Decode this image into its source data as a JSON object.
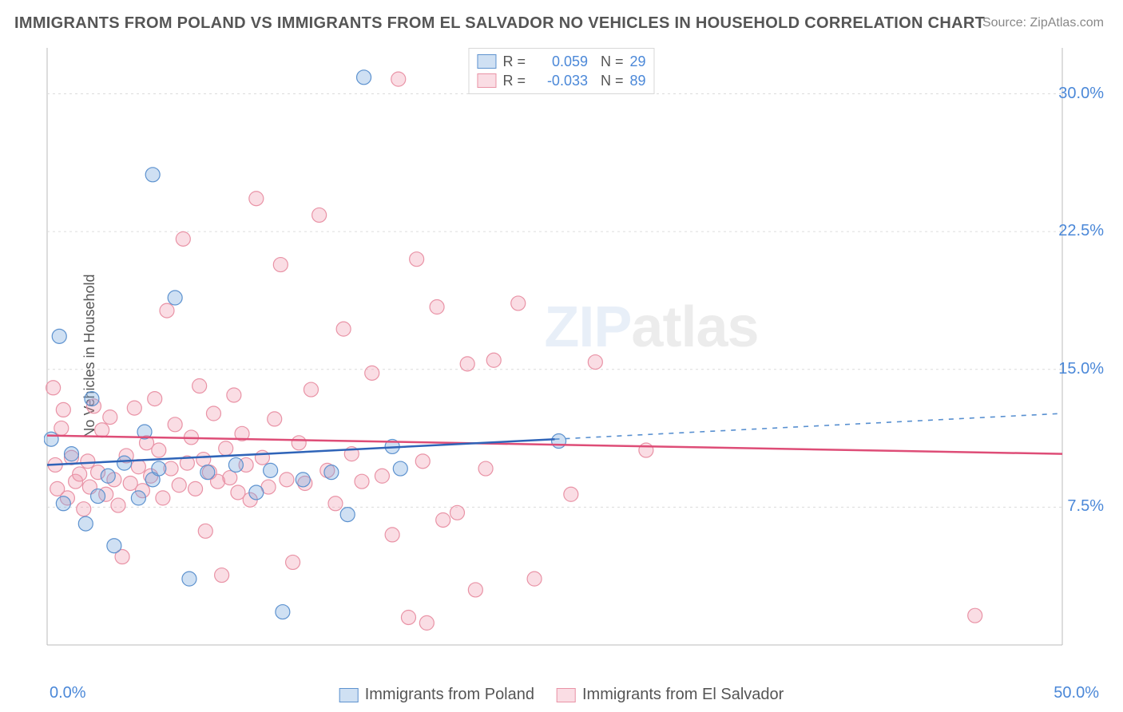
{
  "title": "IMMIGRANTS FROM POLAND VS IMMIGRANTS FROM EL SALVADOR NO VEHICLES IN HOUSEHOLD CORRELATION CHART",
  "source": "Source: ZipAtlas.com",
  "ylabel": "No Vehicles in Household",
  "watermark": {
    "zip": "ZIP",
    "atlas": "atlas"
  },
  "chart": {
    "type": "scatter-correlation",
    "xlim": [
      0,
      50
    ],
    "ylim": [
      0,
      32.5
    ],
    "x_ticks": [
      {
        "v": 0,
        "label": "0.0%"
      },
      {
        "v": 50,
        "label": "50.0%"
      }
    ],
    "y_ticks": [
      {
        "v": 7.5,
        "label": "7.5%"
      },
      {
        "v": 15.0,
        "label": "15.0%"
      },
      {
        "v": 22.5,
        "label": "22.5%"
      },
      {
        "v": 30.0,
        "label": "30.0%"
      }
    ],
    "grid_color": "#dcdcdc",
    "axis_color": "#bbbbbb",
    "background_color": "#ffffff",
    "tick_label_color": "#4b88d8",
    "label_fontsize": 18,
    "tick_fontsize": 20,
    "series": [
      {
        "name": "Immigrants from Poland",
        "color_fill": "rgba(117,165,222,0.35)",
        "color_stroke": "#5d92cf",
        "marker_radius": 9,
        "R": "0.059",
        "N": "29",
        "trend": {
          "x1": 0,
          "y1": 9.8,
          "x2": 25,
          "y2": 11.2,
          "x_extrap": 50,
          "y_extrap": 12.6,
          "solid_color": "#2f64b8",
          "dash_color": "#578fd0",
          "width": 2.5
        },
        "points": [
          [
            0.2,
            11.2
          ],
          [
            0.6,
            16.8
          ],
          [
            0.8,
            7.7
          ],
          [
            1.2,
            10.4
          ],
          [
            1.9,
            6.6
          ],
          [
            2.2,
            13.4
          ],
          [
            2.5,
            8.1
          ],
          [
            3.0,
            9.2
          ],
          [
            3.3,
            5.4
          ],
          [
            3.8,
            9.9
          ],
          [
            4.5,
            8.0
          ],
          [
            4.8,
            11.6
          ],
          [
            5.2,
            9.0
          ],
          [
            5.2,
            25.6
          ],
          [
            5.5,
            9.6
          ],
          [
            6.3,
            18.9
          ],
          [
            7.0,
            3.6
          ],
          [
            7.9,
            9.4
          ],
          [
            9.3,
            9.8
          ],
          [
            10.3,
            8.3
          ],
          [
            11.0,
            9.5
          ],
          [
            11.6,
            1.8
          ],
          [
            12.6,
            9.0
          ],
          [
            14.0,
            9.4
          ],
          [
            14.8,
            7.1
          ],
          [
            15.6,
            30.9
          ],
          [
            17.0,
            10.8
          ],
          [
            17.4,
            9.6
          ],
          [
            25.2,
            11.1
          ]
        ]
      },
      {
        "name": "Immigrants from El Salvador",
        "color_fill": "rgba(240,150,170,0.32)",
        "color_stroke": "#e993a6",
        "marker_radius": 9,
        "R": "-0.033",
        "N": "89",
        "trend": {
          "x1": 0,
          "y1": 11.4,
          "x2": 50,
          "y2": 10.4,
          "solid_color": "#de4d77",
          "width": 2.5
        },
        "points": [
          [
            0.3,
            14.0
          ],
          [
            0.4,
            9.8
          ],
          [
            0.5,
            8.5
          ],
          [
            0.7,
            11.8
          ],
          [
            0.8,
            12.8
          ],
          [
            1.0,
            8.0
          ],
          [
            1.2,
            10.2
          ],
          [
            1.4,
            8.9
          ],
          [
            1.6,
            9.3
          ],
          [
            1.8,
            7.4
          ],
          [
            2.0,
            10.0
          ],
          [
            2.1,
            8.6
          ],
          [
            2.3,
            13.0
          ],
          [
            2.5,
            9.4
          ],
          [
            2.7,
            11.7
          ],
          [
            2.9,
            8.2
          ],
          [
            3.1,
            12.4
          ],
          [
            3.3,
            9.0
          ],
          [
            3.5,
            7.6
          ],
          [
            3.7,
            4.8
          ],
          [
            3.9,
            10.3
          ],
          [
            4.1,
            8.8
          ],
          [
            4.3,
            12.9
          ],
          [
            4.5,
            9.7
          ],
          [
            4.7,
            8.4
          ],
          [
            4.9,
            11.0
          ],
          [
            5.1,
            9.2
          ],
          [
            5.3,
            13.4
          ],
          [
            5.5,
            10.6
          ],
          [
            5.7,
            8.0
          ],
          [
            5.9,
            18.2
          ],
          [
            6.1,
            9.6
          ],
          [
            6.3,
            12.0
          ],
          [
            6.5,
            8.7
          ],
          [
            6.7,
            22.1
          ],
          [
            6.9,
            9.9
          ],
          [
            7.1,
            11.3
          ],
          [
            7.3,
            8.5
          ],
          [
            7.5,
            14.1
          ],
          [
            7.7,
            10.1
          ],
          [
            7.8,
            6.2
          ],
          [
            8.0,
            9.4
          ],
          [
            8.2,
            12.6
          ],
          [
            8.4,
            8.9
          ],
          [
            8.6,
            3.8
          ],
          [
            8.8,
            10.7
          ],
          [
            9.0,
            9.1
          ],
          [
            9.2,
            13.6
          ],
          [
            9.4,
            8.3
          ],
          [
            9.6,
            11.5
          ],
          [
            9.8,
            9.8
          ],
          [
            10.0,
            7.9
          ],
          [
            10.3,
            24.3
          ],
          [
            10.6,
            10.2
          ],
          [
            10.9,
            8.6
          ],
          [
            11.2,
            12.3
          ],
          [
            11.5,
            20.7
          ],
          [
            11.8,
            9.0
          ],
          [
            12.1,
            4.5
          ],
          [
            12.4,
            11.0
          ],
          [
            12.7,
            8.8
          ],
          [
            13.0,
            13.9
          ],
          [
            13.4,
            23.4
          ],
          [
            13.8,
            9.5
          ],
          [
            14.2,
            7.7
          ],
          [
            14.6,
            17.2
          ],
          [
            15.0,
            10.4
          ],
          [
            15.5,
            8.9
          ],
          [
            16.0,
            14.8
          ],
          [
            16.5,
            9.2
          ],
          [
            17.0,
            6.0
          ],
          [
            17.3,
            30.8
          ],
          [
            17.8,
            1.5
          ],
          [
            18.2,
            21.0
          ],
          [
            18.5,
            10.0
          ],
          [
            18.7,
            1.2
          ],
          [
            19.2,
            18.4
          ],
          [
            19.5,
            6.8
          ],
          [
            20.2,
            7.2
          ],
          [
            20.7,
            15.3
          ],
          [
            21.1,
            3.0
          ],
          [
            21.6,
            9.6
          ],
          [
            22.0,
            15.5
          ],
          [
            23.2,
            18.6
          ],
          [
            24.0,
            3.6
          ],
          [
            25.8,
            8.2
          ],
          [
            27.0,
            15.4
          ],
          [
            29.5,
            10.6
          ],
          [
            45.7,
            1.6
          ]
        ]
      }
    ],
    "legend_top": {
      "R_label": "R =",
      "N_label": "N ="
    },
    "legend_bottom": [
      {
        "swatch_fill": "rgba(117,165,222,0.35)",
        "swatch_stroke": "#5d92cf",
        "label": "Immigrants from Poland"
      },
      {
        "swatch_fill": "rgba(240,150,170,0.32)",
        "swatch_stroke": "#e993a6",
        "label": "Immigrants from El Salvador"
      }
    ]
  }
}
